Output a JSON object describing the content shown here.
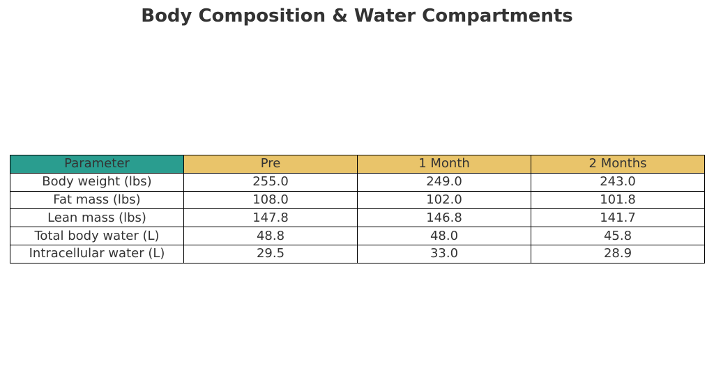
{
  "title": "Body Composition & Water Compartments",
  "table": {
    "columns": [
      "Parameter",
      "Pre",
      "1 Month",
      "2 Months"
    ],
    "rows": [
      [
        "Body weight (lbs)",
        "255.0",
        "249.0",
        "243.0"
      ],
      [
        "Fat mass (lbs)",
        "108.0",
        "102.0",
        "101.8"
      ],
      [
        "Lean mass (lbs)",
        "147.8",
        "146.8",
        "141.7"
      ],
      [
        "Total body water (L)",
        "48.8",
        "48.0",
        "45.8"
      ],
      [
        "Intracellular water (L)",
        "29.5",
        "33.0",
        "28.9"
      ]
    ]
  }
}
